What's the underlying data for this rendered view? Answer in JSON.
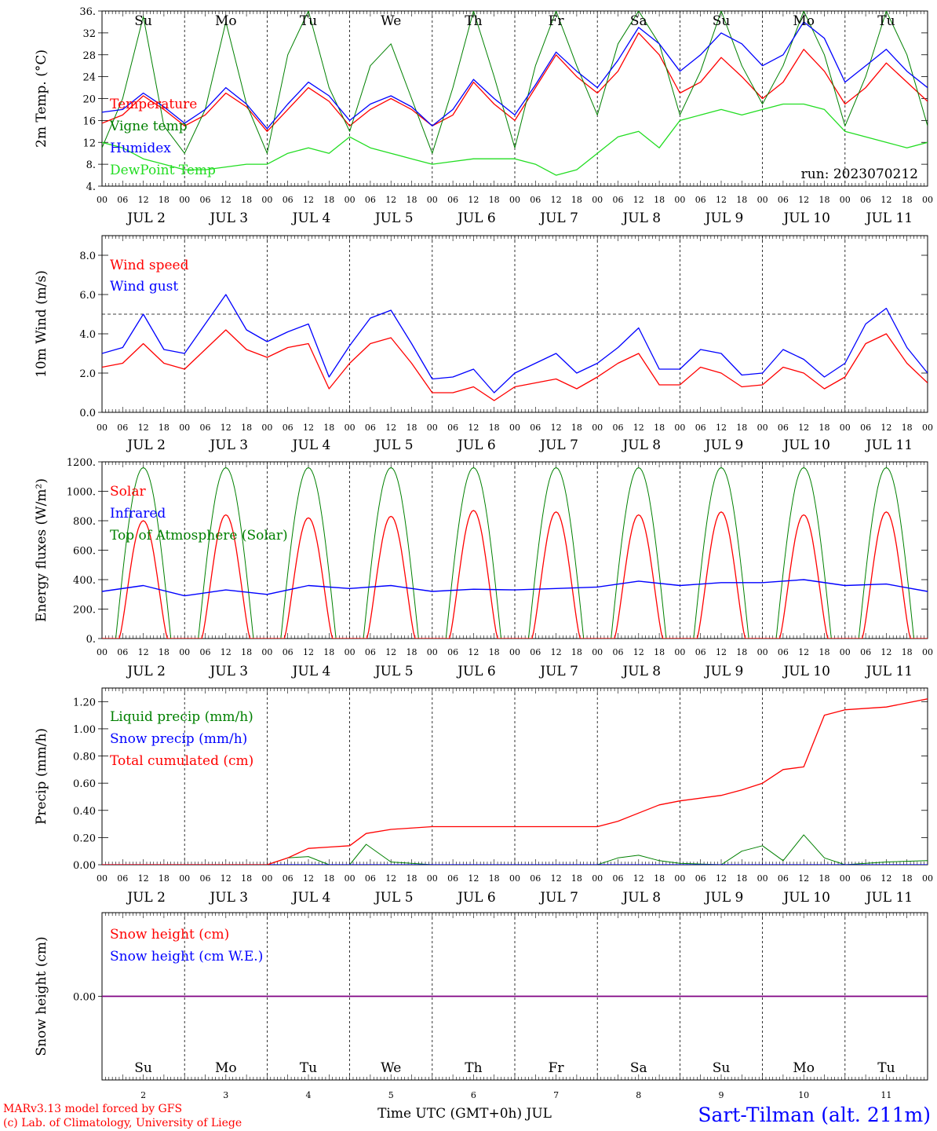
{
  "colors": {
    "red": "#ff0000",
    "green": "#008000",
    "blue": "#0000ff",
    "lightgreen": "#22dd22",
    "purple": "#800080",
    "black": "#000000"
  },
  "day_names": [
    "Su",
    "Mo",
    "Tu",
    "We",
    "Th",
    "Fr",
    "Sa",
    "Su",
    "Mo",
    "Tu"
  ],
  "weekend_flags": [
    true,
    false,
    false,
    false,
    false,
    false,
    true,
    true,
    false,
    false
  ],
  "date_labels": [
    "JUL  2",
    "JUL  3",
    "JUL  4",
    "JUL  5",
    "JUL  6",
    "JUL  7",
    "JUL  8",
    "JUL  9",
    "JUL 10",
    "JUL 11"
  ],
  "hour_labels": [
    "00",
    "06",
    "12",
    "18"
  ],
  "hour_end": "00",
  "bottom_day_numbers": [
    "2",
    "3",
    "4",
    "5",
    "6",
    "7",
    "8",
    "9",
    "10",
    "11"
  ],
  "footer": {
    "model": "MARv3.13 model forced by GFS",
    "lab": "(c) Lab. of Climatology, University of Liege",
    "xaxis": "Time UTC (GMT+0h) JUL",
    "station": "Sart-Tilman (alt. 211m)"
  },
  "chart_data": [
    {
      "id": "temp",
      "type": "line",
      "ylabel": "2m Temp. (°C)",
      "ylim": [
        4,
        36
      ],
      "yticks": [
        "4.",
        "8.",
        "12",
        "16",
        "20",
        "24",
        "28",
        "32",
        "36."
      ],
      "annotation": "run: 2023070212",
      "legend": [
        "Temperature",
        "Vigne temp",
        "Humidex",
        "DewPoint Temp"
      ],
      "x_days": [
        2,
        2.25,
        2.5,
        2.75,
        3,
        3.25,
        3.5,
        3.75,
        4,
        4.25,
        4.5,
        4.75,
        5,
        5.25,
        5.5,
        5.75,
        6,
        6.25,
        6.5,
        6.75,
        7,
        7.25,
        7.5,
        7.75,
        8,
        8.25,
        8.5,
        8.75,
        9,
        9.25,
        9.5,
        9.75,
        10,
        10.25,
        10.5,
        10.75,
        11,
        11.25,
        11.5,
        11.75,
        12
      ],
      "series": [
        {
          "name": "Temperature",
          "color": "red",
          "values": [
            15.5,
            17,
            20.5,
            18,
            15,
            17,
            21,
            18.5,
            14,
            18,
            22,
            19.5,
            15,
            18,
            20,
            18,
            15,
            17,
            23,
            19,
            16,
            22,
            28,
            24,
            21,
            25,
            32,
            28,
            21,
            23,
            27.5,
            24,
            20,
            23,
            29,
            25,
            19,
            22,
            26.5,
            23,
            19.5
          ]
        },
        {
          "name": "Vigne temp",
          "color": "green",
          "values": [
            11,
            20,
            35,
            15,
            10,
            18,
            34,
            19,
            10,
            28,
            36,
            22,
            14,
            26,
            30,
            20,
            10,
            22,
            36,
            24,
            11,
            26,
            36,
            26,
            17,
            30,
            36,
            30,
            17,
            25,
            36,
            26,
            19,
            26,
            36,
            28,
            15,
            24,
            36,
            28,
            15
          ]
        },
        {
          "name": "Humidex",
          "color": "blue",
          "values": [
            17.5,
            18,
            21,
            18.5,
            15.5,
            18,
            22,
            19,
            14.5,
            19,
            23,
            20.5,
            16,
            19,
            20.5,
            18.5,
            15,
            18,
            23.5,
            20,
            17,
            22.5,
            28.5,
            25,
            22,
            27,
            33,
            30,
            25,
            28,
            32,
            30,
            26,
            28,
            34,
            31,
            23,
            26,
            29,
            25,
            22
          ]
        },
        {
          "name": "DewPoint Temp",
          "color": "lightgreen",
          "values": [
            12,
            11,
            9,
            8,
            7,
            7,
            7.5,
            8,
            8,
            10,
            11,
            10,
            13,
            11,
            10,
            9,
            8,
            8.5,
            9,
            9,
            9,
            8,
            6,
            7,
            10,
            13,
            14,
            11,
            16,
            17,
            18,
            17,
            18,
            19,
            19,
            18,
            14,
            13,
            12,
            11,
            12
          ]
        }
      ]
    },
    {
      "id": "wind",
      "type": "line",
      "ylabel": "10m Wind (m/s)",
      "ylim": [
        0,
        9
      ],
      "yticks": [
        "0.0",
        "2.0",
        "4.0",
        "6.0",
        "8.0"
      ],
      "reference_line": 5,
      "legend": [
        "Wind speed",
        "Wind gust"
      ],
      "x_days": [
        2,
        2.25,
        2.5,
        2.75,
        3,
        3.25,
        3.5,
        3.75,
        4,
        4.25,
        4.5,
        4.75,
        5,
        5.25,
        5.5,
        5.75,
        6,
        6.25,
        6.5,
        6.75,
        7,
        7.25,
        7.5,
        7.75,
        8,
        8.25,
        8.5,
        8.75,
        9,
        9.25,
        9.5,
        9.75,
        10,
        10.25,
        10.5,
        10.75,
        11,
        11.25,
        11.5,
        11.75,
        12
      ],
      "series": [
        {
          "name": "Wind speed",
          "color": "red",
          "values": [
            2.3,
            2.5,
            3.5,
            2.5,
            2.2,
            3.2,
            4.2,
            3.2,
            2.8,
            3.3,
            3.5,
            1.2,
            2.5,
            3.5,
            3.8,
            2.5,
            1,
            1,
            1.3,
            0.6,
            1.3,
            1.5,
            1.7,
            1.2,
            1.8,
            2.5,
            3,
            1.4,
            1.4,
            2.3,
            2,
            1.3,
            1.4,
            2.3,
            2,
            1.2,
            1.8,
            3.5,
            4,
            2.5,
            1.5
          ]
        },
        {
          "name": "Wind gust",
          "color": "blue",
          "values": [
            3,
            3.3,
            5,
            3.2,
            3,
            4.5,
            6,
            4.2,
            3.6,
            4.1,
            4.5,
            1.8,
            3.4,
            4.8,
            5.2,
            3.5,
            1.7,
            1.8,
            2.2,
            1,
            2,
            2.5,
            3,
            2,
            2.5,
            3.3,
            4.3,
            2.2,
            2.2,
            3.2,
            3,
            1.9,
            2,
            3.2,
            2.7,
            1.8,
            2.5,
            4.5,
            5.3,
            3.3,
            2
          ]
        }
      ]
    },
    {
      "id": "energy",
      "type": "line",
      "ylabel": "Energy fluxes (W/m²)",
      "ylim": [
        0,
        1200
      ],
      "yticks": [
        "0.",
        "200.",
        "400.",
        "600.",
        "800.",
        "1000.",
        "1200."
      ],
      "legend": [
        "Solar",
        "Infrared",
        "Top of Atmosphere (Solar)"
      ],
      "solar_peaks": [
        800,
        840,
        820,
        830,
        870,
        860,
        840,
        860,
        840,
        860
      ],
      "toa_peak": 1160,
      "daylight_hours": [
        4,
        20
      ],
      "x_days": [
        2,
        2.5,
        3,
        3.5,
        4,
        4.5,
        5,
        5.5,
        6,
        6.5,
        7,
        7.5,
        8,
        8.5,
        9,
        9.5,
        10,
        10.5,
        11,
        11.5,
        12
      ],
      "series": [
        {
          "name": "Solar",
          "color": "red",
          "values": [
            0,
            800,
            0,
            840,
            0,
            820,
            0,
            830,
            0,
            870,
            0,
            860,
            0,
            840,
            0,
            860,
            0,
            840,
            0,
            860,
            0
          ]
        },
        {
          "name": "Infrared",
          "color": "blue",
          "values": [
            320,
            360,
            290,
            330,
            300,
            360,
            340,
            360,
            320,
            335,
            330,
            340,
            350,
            390,
            360,
            380,
            380,
            400,
            360,
            370,
            320
          ]
        },
        {
          "name": "Top of Atmosphere (Solar)",
          "color": "green",
          "values": [
            0,
            1160,
            0,
            1160,
            0,
            1160,
            0,
            1160,
            0,
            1160,
            0,
            1160,
            0,
            1160,
            0,
            1160,
            0,
            1160,
            0,
            1160,
            0
          ]
        }
      ]
    },
    {
      "id": "precip",
      "type": "line",
      "ylabel": "Precip (mm/h)",
      "ylim": [
        0,
        1.3
      ],
      "yticks": [
        "0.00",
        "0.20",
        "0.40",
        "0.60",
        "0.80",
        "1.00",
        "1.20"
      ],
      "legend": [
        "Liquid precip (mm/h)",
        "Snow precip (mm/h)",
        "Total cumulated (cm)"
      ],
      "x_days": [
        2,
        2.5,
        3,
        3.5,
        4,
        4.25,
        4.5,
        4.75,
        5,
        5.2,
        5.5,
        6,
        6.5,
        7,
        7.5,
        8,
        8.25,
        8.5,
        8.75,
        9,
        9.5,
        9.75,
        10,
        10.25,
        10.5,
        10.75,
        11,
        11.5,
        12
      ],
      "series": [
        {
          "name": "Liquid precip (mm/h)",
          "color": "green",
          "values": [
            0,
            0,
            0,
            0,
            0,
            0.05,
            0.06,
            0,
            0,
            0.15,
            0.02,
            0,
            0,
            0,
            0,
            0,
            0.05,
            0.07,
            0.03,
            0.01,
            0,
            0.1,
            0.14,
            0.03,
            0.22,
            0.05,
            0,
            0.02,
            0.03
          ]
        },
        {
          "name": "Snow precip (mm/h)",
          "color": "blue",
          "values": [
            0,
            0,
            0,
            0,
            0,
            0,
            0,
            0,
            0,
            0,
            0,
            0,
            0,
            0,
            0,
            0,
            0,
            0,
            0,
            0,
            0,
            0,
            0,
            0,
            0,
            0,
            0,
            0,
            0
          ]
        },
        {
          "name": "Total cumulated (cm)",
          "color": "red",
          "values": [
            0,
            0,
            0,
            0,
            0,
            0.05,
            0.12,
            0.13,
            0.14,
            0.23,
            0.26,
            0.28,
            0.28,
            0.28,
            0.28,
            0.28,
            0.32,
            0.38,
            0.44,
            0.47,
            0.51,
            0.55,
            0.6,
            0.7,
            0.72,
            1.1,
            1.14,
            1.16,
            1.22
          ]
        }
      ]
    },
    {
      "id": "snow",
      "type": "line",
      "ylabel": "Snow height (cm)",
      "ylim": [
        -1,
        1
      ],
      "yticks": [
        "0.00"
      ],
      "legend": [
        "Snow height (cm)",
        "Snow height (cm W.E.)"
      ],
      "x_days": [
        2,
        12
      ],
      "series": [
        {
          "name": "Snow height (cm)",
          "color": "red",
          "values": [
            0,
            0
          ]
        },
        {
          "name": "Snow height (cm W.E.)",
          "color": "blue",
          "values": [
            0,
            0
          ]
        }
      ]
    }
  ]
}
